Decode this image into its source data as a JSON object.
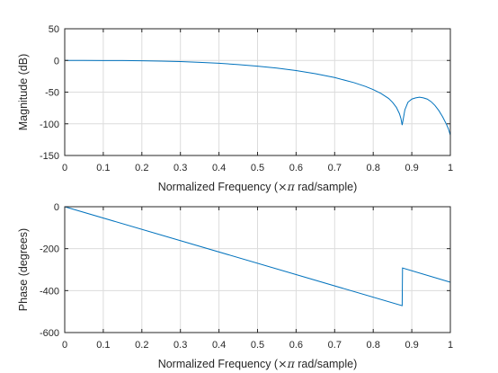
{
  "chart_data": [
    {
      "type": "line",
      "ylabel": "Magnitude (dB)",
      "xlabel_prefix": "Normalized Frequency  (",
      "xlabel_pi": "×π",
      "xlabel_suffix": " rad/sample)",
      "xlim": [
        0,
        1
      ],
      "ylim": [
        -150,
        50
      ],
      "xticks": [
        0,
        0.1,
        0.2,
        0.3,
        0.4,
        0.5,
        0.6,
        0.7,
        0.8,
        0.9,
        1
      ],
      "xtick_labels": [
        "0",
        "0.1",
        "0.2",
        "0.3",
        "0.4",
        "0.5",
        "0.6",
        "0.7",
        "0.8",
        "0.9",
        "1"
      ],
      "yticks": [
        -150,
        -100,
        -50,
        0,
        50
      ],
      "ytick_labels": [
        "-150",
        "-100",
        "-50",
        "0",
        "50"
      ],
      "grid": true,
      "color": "#0072BD",
      "series": [
        {
          "x": [
            0,
            0.05,
            0.1,
            0.15,
            0.2,
            0.25,
            0.3,
            0.35,
            0.4,
            0.45,
            0.5,
            0.55,
            0.6,
            0.65,
            0.7,
            0.75,
            0.78,
            0.8,
            0.82,
            0.84,
            0.85,
            0.86,
            0.868,
            0.872,
            0.875,
            0.878,
            0.882,
            0.89,
            0.9,
            0.91,
            0.92,
            0.93,
            0.94,
            0.95,
            0.96,
            0.97,
            0.98,
            0.99,
            0.995,
            1.0
          ],
          "y": [
            0,
            0,
            -0.1,
            -0.2,
            -0.5,
            -1,
            -1.8,
            -3,
            -4.5,
            -6.5,
            -9,
            -12,
            -16,
            -21,
            -27,
            -35,
            -41,
            -46,
            -52,
            -60,
            -66,
            -74,
            -84,
            -92,
            -102,
            -92,
            -78,
            -66,
            -61,
            -59,
            -58,
            -59,
            -61,
            -65,
            -71,
            -79,
            -89,
            -101,
            -108,
            -118
          ]
        }
      ]
    },
    {
      "type": "line",
      "ylabel": "Phase (degrees)",
      "xlabel_prefix": "Normalized Frequency  (",
      "xlabel_pi": "×π",
      "xlabel_suffix": " rad/sample)",
      "xlim": [
        0,
        1
      ],
      "ylim": [
        -600,
        0
      ],
      "xticks": [
        0,
        0.1,
        0.2,
        0.3,
        0.4,
        0.5,
        0.6,
        0.7,
        0.8,
        0.9,
        1
      ],
      "xtick_labels": [
        "0",
        "0.1",
        "0.2",
        "0.3",
        "0.4",
        "0.5",
        "0.6",
        "0.7",
        "0.8",
        "0.9",
        "1"
      ],
      "yticks": [
        -600,
        -400,
        -200,
        0
      ],
      "ytick_labels": [
        "-600",
        "-400",
        "-200",
        "0"
      ],
      "grid": true,
      "color": "#0072BD",
      "series": [
        {
          "x": [
            0,
            0.875,
            0.876,
            1.0
          ],
          "y": [
            0,
            -472,
            -292,
            -360
          ]
        }
      ]
    }
  ]
}
